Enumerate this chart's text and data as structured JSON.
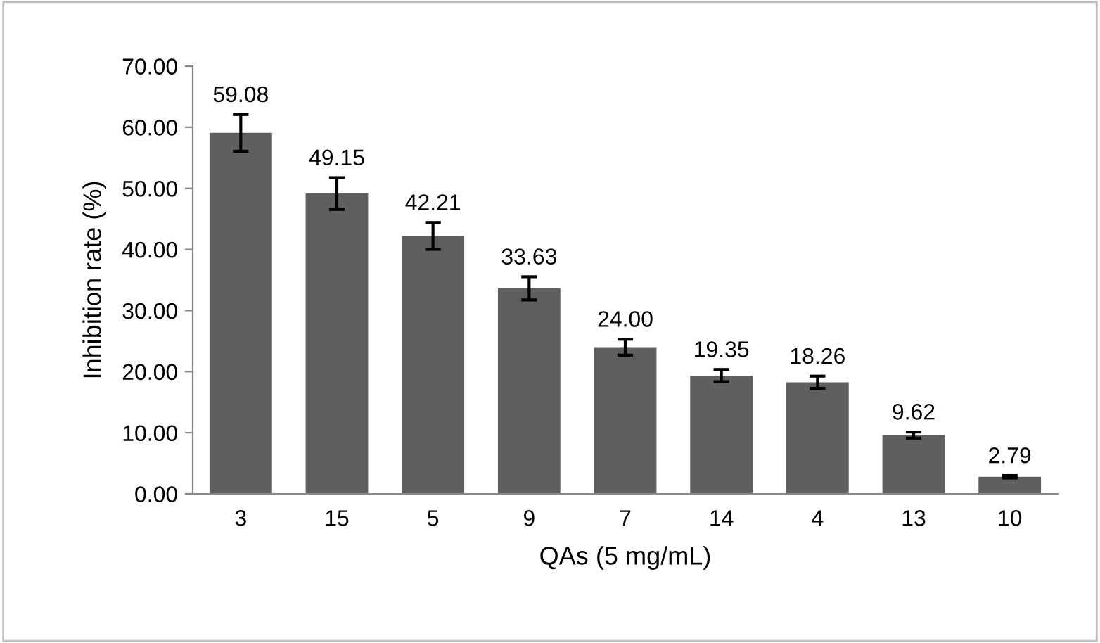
{
  "chart_data": {
    "type": "bar",
    "xlabel": "QAs (5 mg/mL)",
    "ylabel": "Inhibition rate (%)",
    "categories": [
      "3",
      "15",
      "5",
      "9",
      "7",
      "14",
      "4",
      "13",
      "10"
    ],
    "values": [
      59.08,
      49.15,
      42.21,
      33.63,
      24.0,
      19.35,
      18.26,
      9.62,
      2.79
    ],
    "errors": [
      3.0,
      2.6,
      2.2,
      1.9,
      1.3,
      1.0,
      1.0,
      0.5,
      0.2
    ],
    "value_labels": [
      "59.08",
      "49.15",
      "42.21",
      "33.63",
      "24.00",
      "19.35",
      "18.26",
      "9.62",
      "2.79"
    ],
    "color": "#5f5f5f",
    "ylim": [
      0,
      70
    ],
    "yticks": [
      {
        "value": 0,
        "label": "0.00"
      },
      {
        "value": 10,
        "label": "10.00"
      },
      {
        "value": 20,
        "label": "20.00"
      },
      {
        "value": 30,
        "label": "30.00"
      },
      {
        "value": 40,
        "label": "40.00"
      },
      {
        "value": 50,
        "label": "50.00"
      },
      {
        "value": 60,
        "label": "60.00"
      },
      {
        "value": 70,
        "label": "70.00"
      }
    ],
    "grid": false,
    "legend": false
  }
}
